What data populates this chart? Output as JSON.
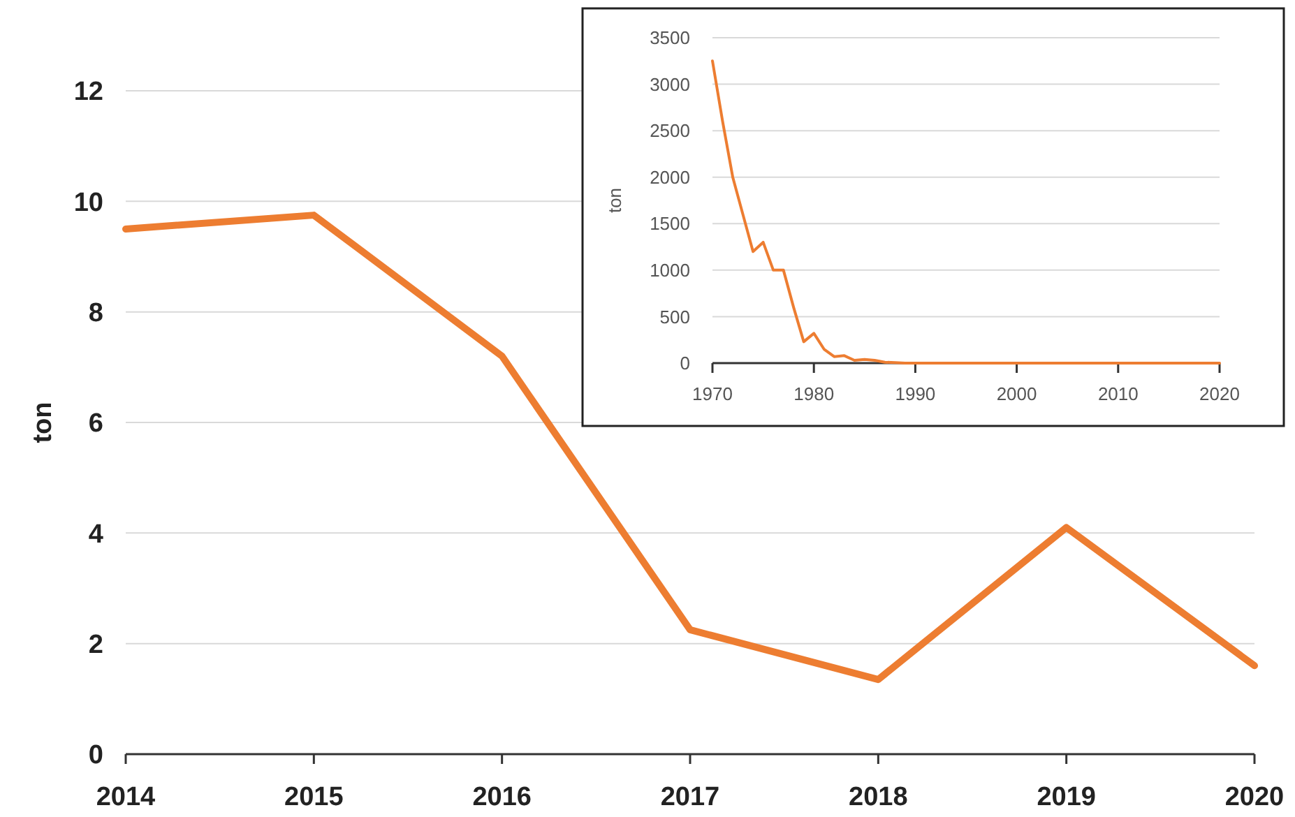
{
  "chart_data": [
    {
      "type": "line",
      "ylabel": "ton",
      "x": [
        2014,
        2015,
        2016,
        2017,
        2018,
        2019,
        2020
      ],
      "xlim": [
        2014,
        2020
      ],
      "xticks": [
        2014,
        2015,
        2016,
        2017,
        2018,
        2019,
        2020
      ],
      "ylim": [
        0,
        12
      ],
      "yticks": [
        0,
        2,
        4,
        6,
        8,
        10,
        12
      ],
      "grid": "y",
      "marker": "none",
      "line_style": "solid",
      "series": [
        {
          "color": "#ed7d31",
          "values": [
            9.5,
            9.75,
            7.2,
            2.25,
            1.35,
            4.1,
            1.6
          ]
        }
      ]
    },
    {
      "type": "line",
      "ylabel": "ton",
      "x": [
        1970,
        1971,
        1972,
        1973,
        1974,
        1975,
        1976,
        1977,
        1978,
        1979,
        1980,
        1981,
        1982,
        1983,
        1984,
        1985,
        1986,
        1987,
        1988,
        1989,
        1990,
        1995,
        2000,
        2005,
        2010,
        2015,
        2020
      ],
      "xlim": [
        1970,
        2020
      ],
      "xticks": [
        1970,
        1980,
        1990,
        2000,
        2010,
        2020
      ],
      "ylim": [
        0,
        3500
      ],
      "yticks": [
        0,
        500,
        1000,
        1500,
        2000,
        2500,
        3000,
        3500
      ],
      "grid": "y",
      "marker": "none",
      "line_style": "solid",
      "series": [
        {
          "color": "#ed7d31",
          "values": [
            3250,
            2600,
            2000,
            1600,
            1200,
            1300,
            1000,
            1000,
            600,
            230,
            320,
            150,
            70,
            80,
            30,
            40,
            30,
            10,
            5,
            0,
            0,
            0,
            0,
            0,
            0,
            0,
            0
          ]
        }
      ]
    }
  ]
}
